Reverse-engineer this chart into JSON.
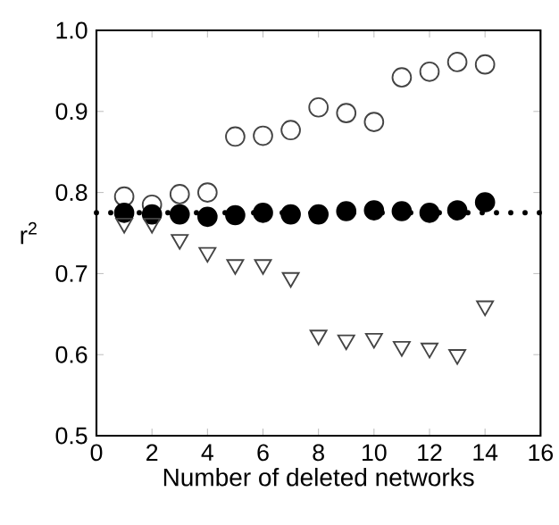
{
  "chart_data": {
    "type": "scatter",
    "xlabel": "Number of deleted networks",
    "ylabel": "r$^{2}$",
    "x": [
      1,
      2,
      3,
      4,
      5,
      6,
      7,
      8,
      9,
      10,
      11,
      12,
      13,
      14
    ],
    "series": [
      {
        "color": "#444444",
        "marker": "circle",
        "values": [
          0.795,
          0.785,
          0.798,
          0.8,
          0.869,
          0.87,
          0.877,
          0.905,
          0.898,
          0.887,
          0.942,
          0.949,
          0.961,
          0.958
        ]
      },
      {
        "color": "#000000",
        "marker": "circle",
        "values": [
          0.775,
          0.773,
          0.773,
          0.77,
          0.772,
          0.775,
          0.773,
          0.773,
          0.777,
          0.778,
          0.777,
          0.775,
          0.778,
          0.788
        ]
      },
      {
        "color": "#444444",
        "marker": "triangle",
        "values": [
          0.762,
          0.762,
          0.742,
          0.726,
          0.711,
          0.711,
          0.695,
          0.624,
          0.618,
          0.62,
          0.61,
          0.608,
          0.6,
          0.66
        ]
      }
    ],
    "ref_lines": [
      {
        "axis": "y",
        "value": 0.775,
        "color": "#000000",
        "line_style": "dotted"
      }
    ],
    "xlim": [
      0,
      16
    ],
    "ylim": [
      0.5,
      1.0
    ],
    "xticks": [
      0,
      2,
      4,
      6,
      8,
      10,
      12,
      14,
      16
    ],
    "yticks": [
      {
        "value": 0.5,
        "label": "0.5"
      },
      {
        "value": 0.6,
        "label": "0.6"
      },
      {
        "value": 0.7,
        "label": "0.7"
      },
      {
        "value": 0.8,
        "label": "0.8"
      },
      {
        "value": 0.9,
        "label": "0.9"
      },
      {
        "value": 1.0,
        "label": "1.0"
      }
    ],
    "grid": false
  }
}
